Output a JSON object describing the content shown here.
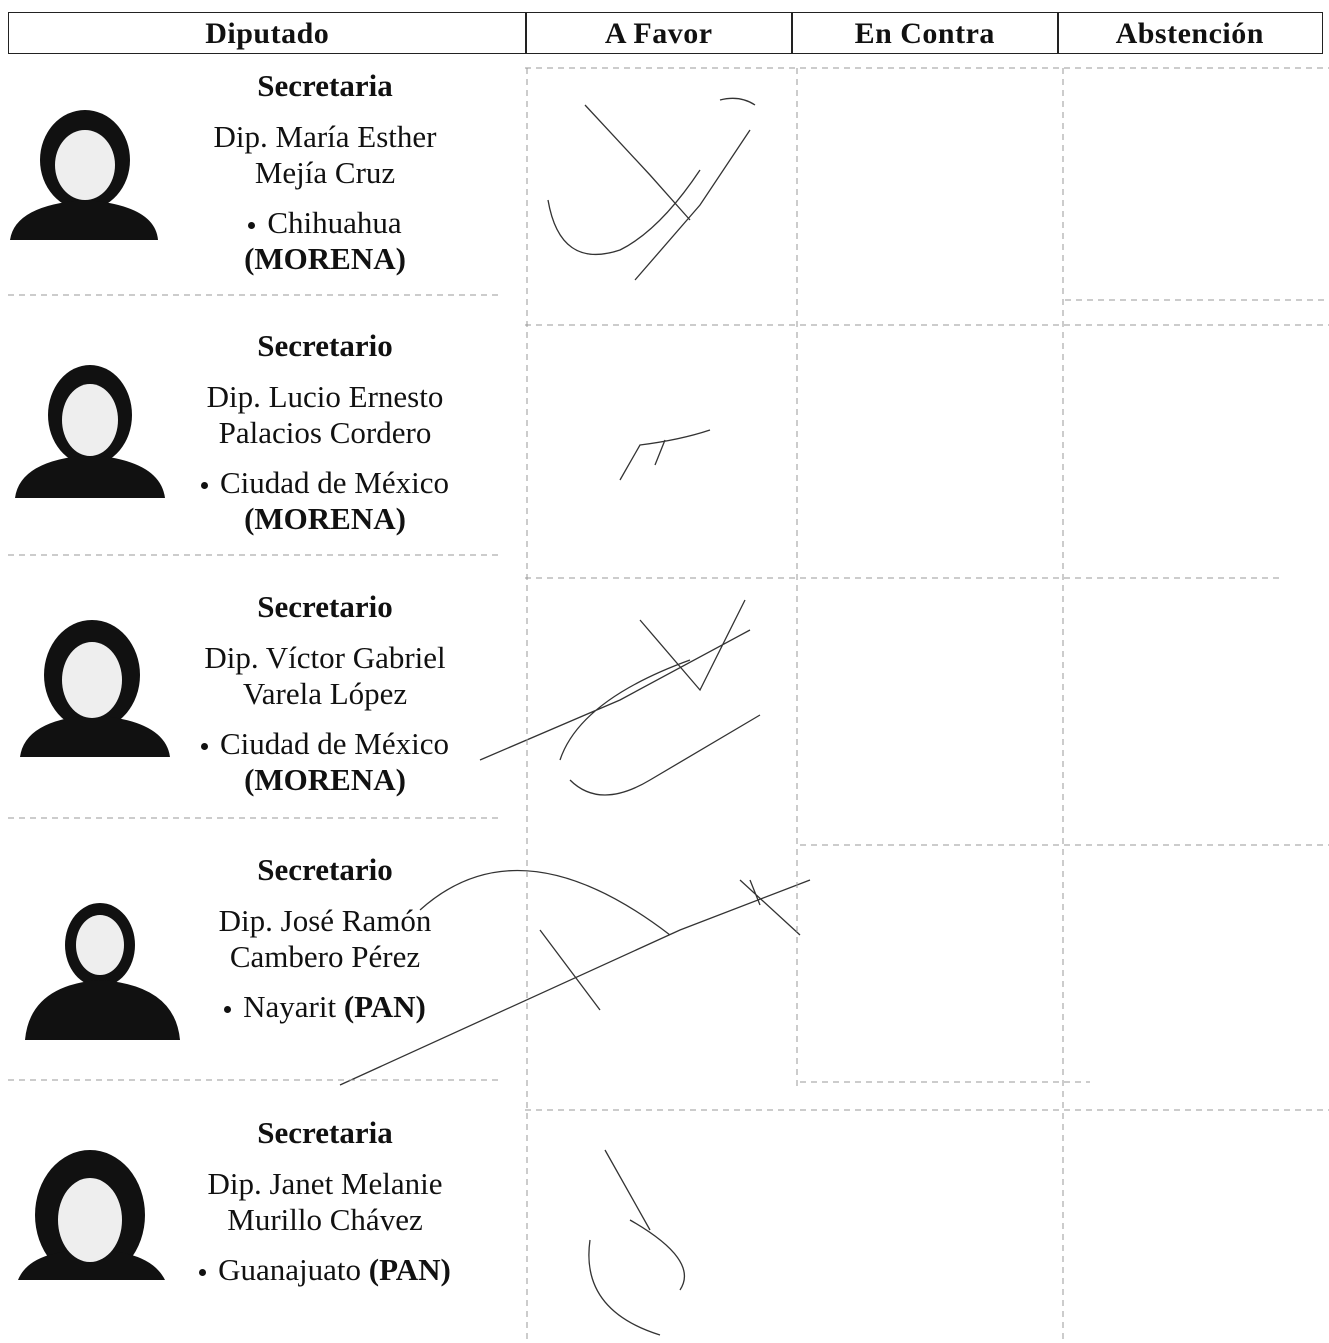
{
  "header": {
    "columns": [
      "Diputado",
      "A Favor",
      "En Contra",
      "Abstención"
    ]
  },
  "rows": [
    {
      "role": "Secretaria",
      "name": [
        "Dip. María Esther",
        "Mejía Cruz"
      ],
      "state": "Chihuahua",
      "party": "(MORENA)",
      "party_inline": false
    },
    {
      "role": "Secretario",
      "name": [
        "Dip. Lucio Ernesto",
        "Palacios Cordero"
      ],
      "state": "Ciudad de México",
      "party": "(MORENA)",
      "party_inline": false
    },
    {
      "role": "Secretario",
      "name": [
        "Dip. Víctor Gabriel",
        "Varela López"
      ],
      "state": "Ciudad de México",
      "party": "(MORENA)",
      "party_inline": false
    },
    {
      "role": "Secretario",
      "name": [
        "Dip. José Ramón",
        "Cambero Pérez"
      ],
      "state": "Nayarit",
      "party": "(PAN)",
      "party_inline": true
    },
    {
      "role": "Secretaria",
      "name": [
        "Dip. Janet Melanie",
        "Murillo Chávez"
      ],
      "state": "Guanajuato",
      "party": "(PAN)",
      "party_inline": true
    }
  ]
}
